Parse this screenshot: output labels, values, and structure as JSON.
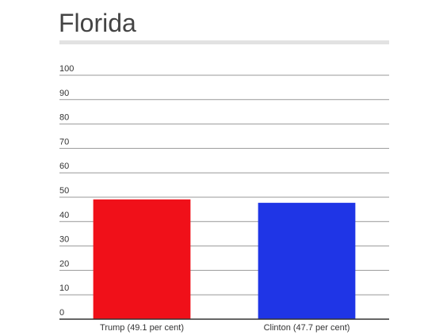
{
  "chart_data": {
    "type": "bar",
    "title": "Florida",
    "categories": [
      "Trump (49.1 per cent)",
      "Clinton (47.7 per cent)"
    ],
    "values": [
      49.1,
      47.7
    ],
    "colors": [
      "#f01019",
      "#1f35e6"
    ],
    "ylim": [
      0,
      100
    ],
    "yticks": [
      0,
      10,
      20,
      30,
      40,
      50,
      60,
      70,
      80,
      90,
      100
    ],
    "grid": true
  }
}
